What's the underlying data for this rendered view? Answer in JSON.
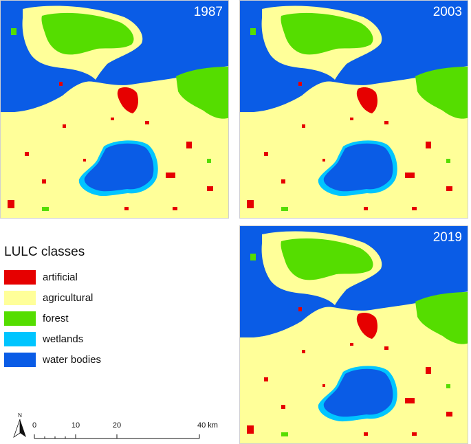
{
  "panels": [
    {
      "year": "1987"
    },
    {
      "year": "2003"
    },
    {
      "year": "2019"
    }
  ],
  "legend": {
    "title": "LULC classes",
    "items": [
      {
        "label": "artificial",
        "color": "#e60000"
      },
      {
        "label": "agricultural",
        "color": "#ffff99"
      },
      {
        "label": "forest",
        "color": "#55dd00"
      },
      {
        "label": "wetlands",
        "color": "#00c5ff"
      },
      {
        "label": "water bodies",
        "color": "#0a5ce6"
      }
    ]
  },
  "scale": {
    "north": "N",
    "ticks": [
      "0",
      "10",
      "20",
      "40 km"
    ]
  }
}
